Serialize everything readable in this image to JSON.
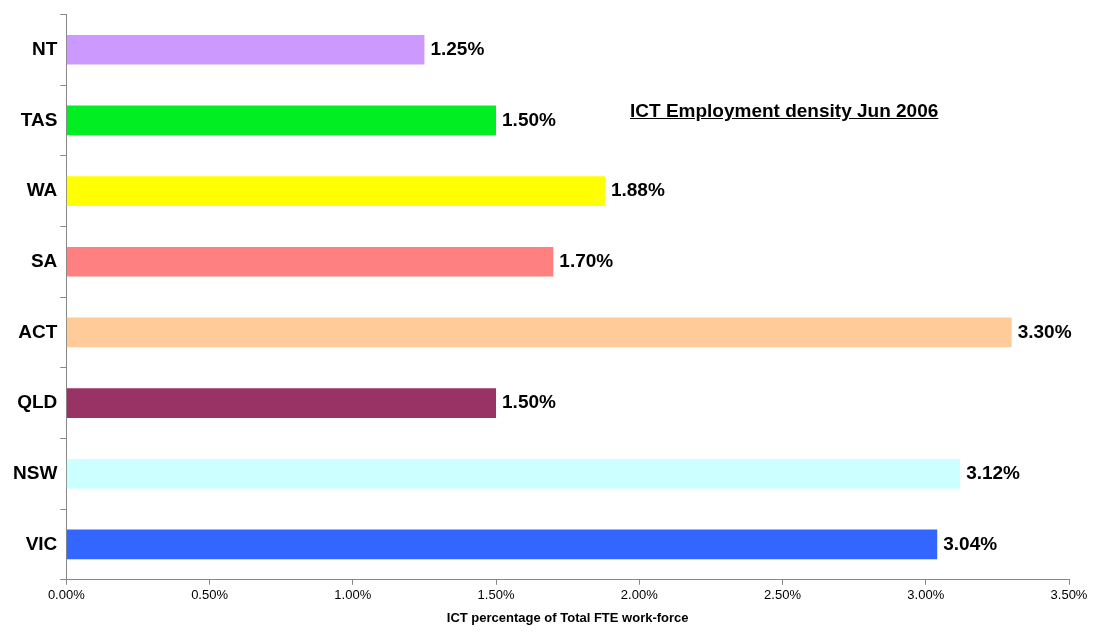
{
  "chart_data": {
    "type": "bar",
    "orientation": "horizontal",
    "title": "ICT Employment density Jun 2006",
    "xlabel": "ICT percentage of Total FTE work-force",
    "categories": [
      "NT",
      "TAS",
      "WA",
      "SA",
      "ACT",
      "QLD",
      "NSW",
      "VIC"
    ],
    "values": [
      1.25,
      1.5,
      1.88,
      1.7,
      3.3,
      1.5,
      3.12,
      3.04
    ],
    "colors": [
      "#cc99ff",
      "#00ee22",
      "#ffff00",
      "#ff8080",
      "#ffcc99",
      "#993366",
      "#ccffff",
      "#3366ff"
    ],
    "value_labels": [
      "1.25%",
      "1.50%",
      "1.88%",
      "1.70%",
      "3.30%",
      "1.50%",
      "3.12%",
      "3.04%"
    ],
    "xlim": [
      0,
      3.5
    ],
    "xticks": [
      {
        "value": 0,
        "label": "0.00%"
      },
      {
        "value": 0.5,
        "label": "0.50%"
      },
      {
        "value": 1,
        "label": "1.00%"
      },
      {
        "value": 1.5,
        "label": "1.50%"
      },
      {
        "value": 2,
        "label": "2.00%"
      },
      {
        "value": 2.5,
        "label": "2.50%"
      },
      {
        "value": 3,
        "label": "3.00%"
      },
      {
        "value": 3.5,
        "label": "3.50%"
      }
    ],
    "grid": false,
    "legend": false
  }
}
